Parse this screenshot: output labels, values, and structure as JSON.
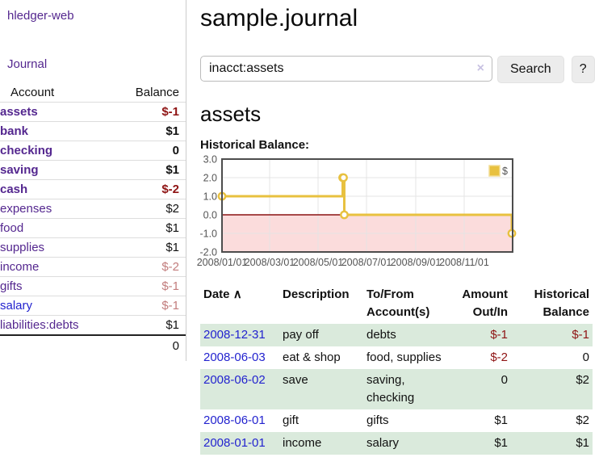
{
  "sidebar": {
    "app_title": "hledger-web",
    "nav": {
      "journal_label": "Journal"
    },
    "accounts_table": {
      "headers": [
        "Account",
        "Balance"
      ],
      "rows": [
        {
          "label": "assets",
          "indent": 1,
          "matched": true,
          "link": "purple",
          "balance": "$-1",
          "balance_tone": "neg-strong"
        },
        {
          "label": "bank",
          "indent": 2,
          "matched": true,
          "link": "purple",
          "balance": "$1",
          "balance_tone": "normal"
        },
        {
          "label": "checking",
          "indent": 3,
          "matched": true,
          "link": "purple",
          "balance": "0",
          "balance_tone": "normal"
        },
        {
          "label": "saving",
          "indent": 3,
          "matched": true,
          "link": "purple",
          "balance": "$1",
          "balance_tone": "normal"
        },
        {
          "label": "cash",
          "indent": 2,
          "matched": true,
          "link": "purple",
          "balance": "$-2",
          "balance_tone": "neg-strong"
        },
        {
          "label": "expenses",
          "indent": 1,
          "matched": false,
          "link": "purple",
          "balance": "$2",
          "balance_tone": "normal"
        },
        {
          "label": "food",
          "indent": 2,
          "matched": false,
          "link": "purple",
          "balance": "$1",
          "balance_tone": "normal"
        },
        {
          "label": "supplies",
          "indent": 2,
          "matched": false,
          "link": "purple",
          "balance": "$1",
          "balance_tone": "normal"
        },
        {
          "label": "income",
          "indent": 1,
          "matched": false,
          "link": "purple",
          "balance": "$-2",
          "balance_tone": "neg-muted"
        },
        {
          "label": "gifts",
          "indent": 2,
          "matched": false,
          "link": "purple",
          "balance": "$-1",
          "balance_tone": "neg-muted"
        },
        {
          "label": "salary",
          "indent": 2,
          "matched": false,
          "link": "blue",
          "balance": "$-1",
          "balance_tone": "neg-muted"
        },
        {
          "label": "liabilities:debts",
          "indent": 1,
          "matched": false,
          "link": "purple",
          "balance": "$1",
          "balance_tone": "normal"
        }
      ],
      "total": "0"
    }
  },
  "header": {
    "title": "sample.journal"
  },
  "search": {
    "value": "inacct:assets",
    "clear_icon": "×",
    "button_label": "Search",
    "help_label": "?"
  },
  "account_page": {
    "title": "assets",
    "chart_label": "Historical Balance:"
  },
  "chart_data": {
    "type": "line",
    "title": "Historical Balance:",
    "step": true,
    "x_range": [
      "2008-01-01",
      "2009-01-01"
    ],
    "ylim": [
      -2,
      3
    ],
    "y_ticks": [
      3,
      2,
      1,
      0,
      -1,
      -2
    ],
    "y_tick_labels": [
      "3.0",
      "2.0",
      "1.0",
      "0.0",
      "-1.0",
      "-2.0"
    ],
    "x_ticks": [
      "2008-01-01",
      "2008-03-01",
      "2008-05-01",
      "2008-07-01",
      "2008-09-01",
      "2008-11-01"
    ],
    "x_tick_labels": [
      "2008/01/01",
      "2008/03/01",
      "2008/05/01",
      "2008/07/01",
      "2008/09/01",
      "2008/11/01"
    ],
    "series": [
      {
        "name": "$",
        "points": [
          [
            "2008-01-01",
            1
          ],
          [
            "2008-06-01",
            2
          ],
          [
            "2008-06-02",
            2
          ],
          [
            "2008-06-03",
            0
          ],
          [
            "2008-12-31",
            -1
          ]
        ]
      }
    ],
    "legend": {
      "position": "top-right",
      "entries": [
        "$"
      ]
    },
    "grid": true,
    "colors": {
      "line": "#e8c13f",
      "point_fill": "#ffffff",
      "zero_line": "#8b1212",
      "negative_region": "#fbdcdc",
      "border": "#4d4d4d",
      "grid": "#e4e4e4",
      "axis_text": "#545454"
    }
  },
  "register": {
    "columns": [
      "Date",
      "Description",
      "To/From Account(s)",
      "Amount Out/In",
      "Historical Balance"
    ],
    "sort_indicator": "∧",
    "rows": [
      {
        "date": "2008-12-31",
        "description": "pay off",
        "accounts": "debts",
        "amount": "$-1",
        "amount_negative": true,
        "balance": "$-1",
        "balance_negative": true
      },
      {
        "date": "2008-06-03",
        "description": "eat & shop",
        "accounts": "food, supplies",
        "amount": "$-2",
        "amount_negative": true,
        "balance": "0",
        "balance_negative": false
      },
      {
        "date": "2008-06-02",
        "description": "save",
        "accounts": "saving, checking",
        "amount": "0",
        "amount_negative": false,
        "balance": "$2",
        "balance_negative": false
      },
      {
        "date": "2008-06-01",
        "description": "gift",
        "accounts": "gifts",
        "amount": "$1",
        "amount_negative": false,
        "balance": "$2",
        "balance_negative": false
      },
      {
        "date": "2008-01-01",
        "description": "income",
        "accounts": "salary",
        "amount": "$1",
        "amount_negative": false,
        "balance": "$1",
        "balance_negative": false
      }
    ]
  }
}
